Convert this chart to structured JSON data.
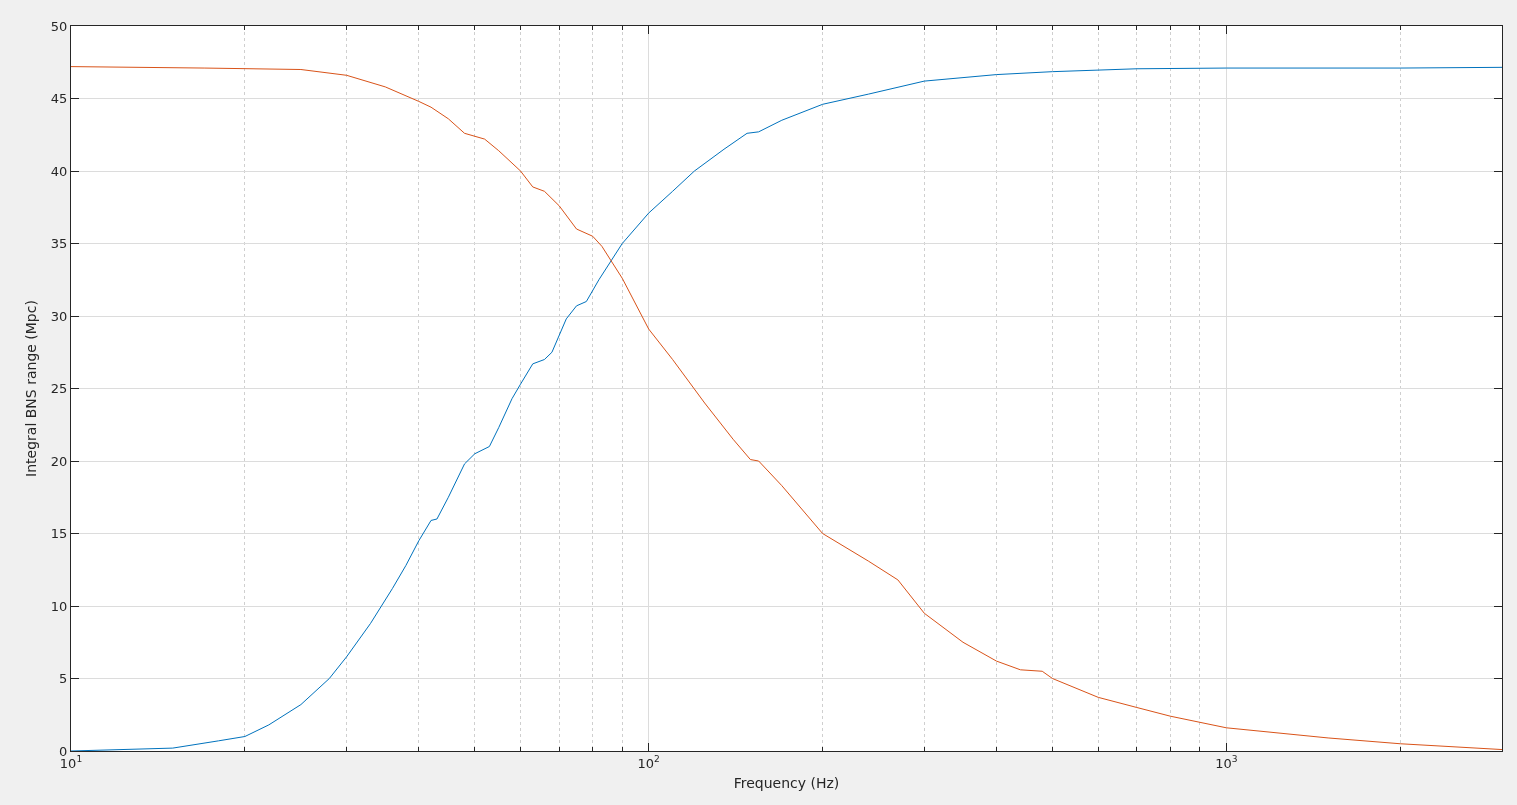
{
  "chart_data": {
    "type": "line",
    "xlabel": "Frequency (Hz)",
    "ylabel": "Integral BNS range (Mpc)",
    "log": "x",
    "grid": true,
    "marker": "none",
    "line_style": "solid",
    "xlim": [
      10,
      3000
    ],
    "xticks": [
      {
        "value": 10,
        "label": "10$^{1}$"
      },
      {
        "value": 100,
        "label": "10$^{2}$"
      },
      {
        "value": 1000,
        "label": "10$^{3}$"
      }
    ],
    "ylim": [
      0,
      50
    ],
    "yticks": [
      0,
      5,
      10,
      15,
      20,
      25,
      30,
      35,
      40,
      45,
      50
    ],
    "series": [
      {
        "color": "#0072bd",
        "x": [
          10,
          15,
          18,
          20,
          22,
          25,
          28,
          30,
          33,
          36,
          38,
          40,
          42,
          43,
          45,
          48,
          50,
          53,
          55,
          58,
          60,
          63,
          66,
          68,
          72,
          75,
          78,
          82,
          90,
          100,
          110,
          120,
          135,
          148,
          155,
          170,
          200,
          240,
          300,
          400,
          500,
          700,
          1000,
          2000,
          3000
        ],
        "values": [
          0,
          0.2,
          0.7,
          1.0,
          1.8,
          3.2,
          5.0,
          6.5,
          8.8,
          11.2,
          12.8,
          14.5,
          15.9,
          16.0,
          17.5,
          19.8,
          20.5,
          21.0,
          22.3,
          24.3,
          25.3,
          26.7,
          27.0,
          27.5,
          29.8,
          30.7,
          31.0,
          32.5,
          35.0,
          37.1,
          38.6,
          40.0,
          41.5,
          42.6,
          42.7,
          43.5,
          44.6,
          45.3,
          46.2,
          46.65,
          46.85,
          47.05,
          47.1,
          47.1,
          47.15
        ]
      },
      {
        "color": "#d95319",
        "x": [
          10,
          17,
          25,
          30,
          35,
          40,
          42,
          45,
          48,
          52,
          55,
          60,
          63,
          66,
          70,
          75,
          80,
          83,
          90,
          100,
          110,
          125,
          140,
          150,
          155,
          170,
          200,
          240,
          270,
          300,
          350,
          400,
          440,
          480,
          500,
          600,
          700,
          800,
          1000,
          1500,
          2000,
          3000
        ],
        "values": [
          47.2,
          47.1,
          47.0,
          46.6,
          45.8,
          44.8,
          44.4,
          43.6,
          42.6,
          42.2,
          41.4,
          40.0,
          38.9,
          38.6,
          37.6,
          36.0,
          35.5,
          34.8,
          32.6,
          29.1,
          27.0,
          24.0,
          21.5,
          20.1,
          20.0,
          18.3,
          15.0,
          13.1,
          11.8,
          9.5,
          7.5,
          6.2,
          5.6,
          5.5,
          5.0,
          3.7,
          3.0,
          2.4,
          1.6,
          0.9,
          0.5,
          0.1
        ]
      }
    ]
  }
}
